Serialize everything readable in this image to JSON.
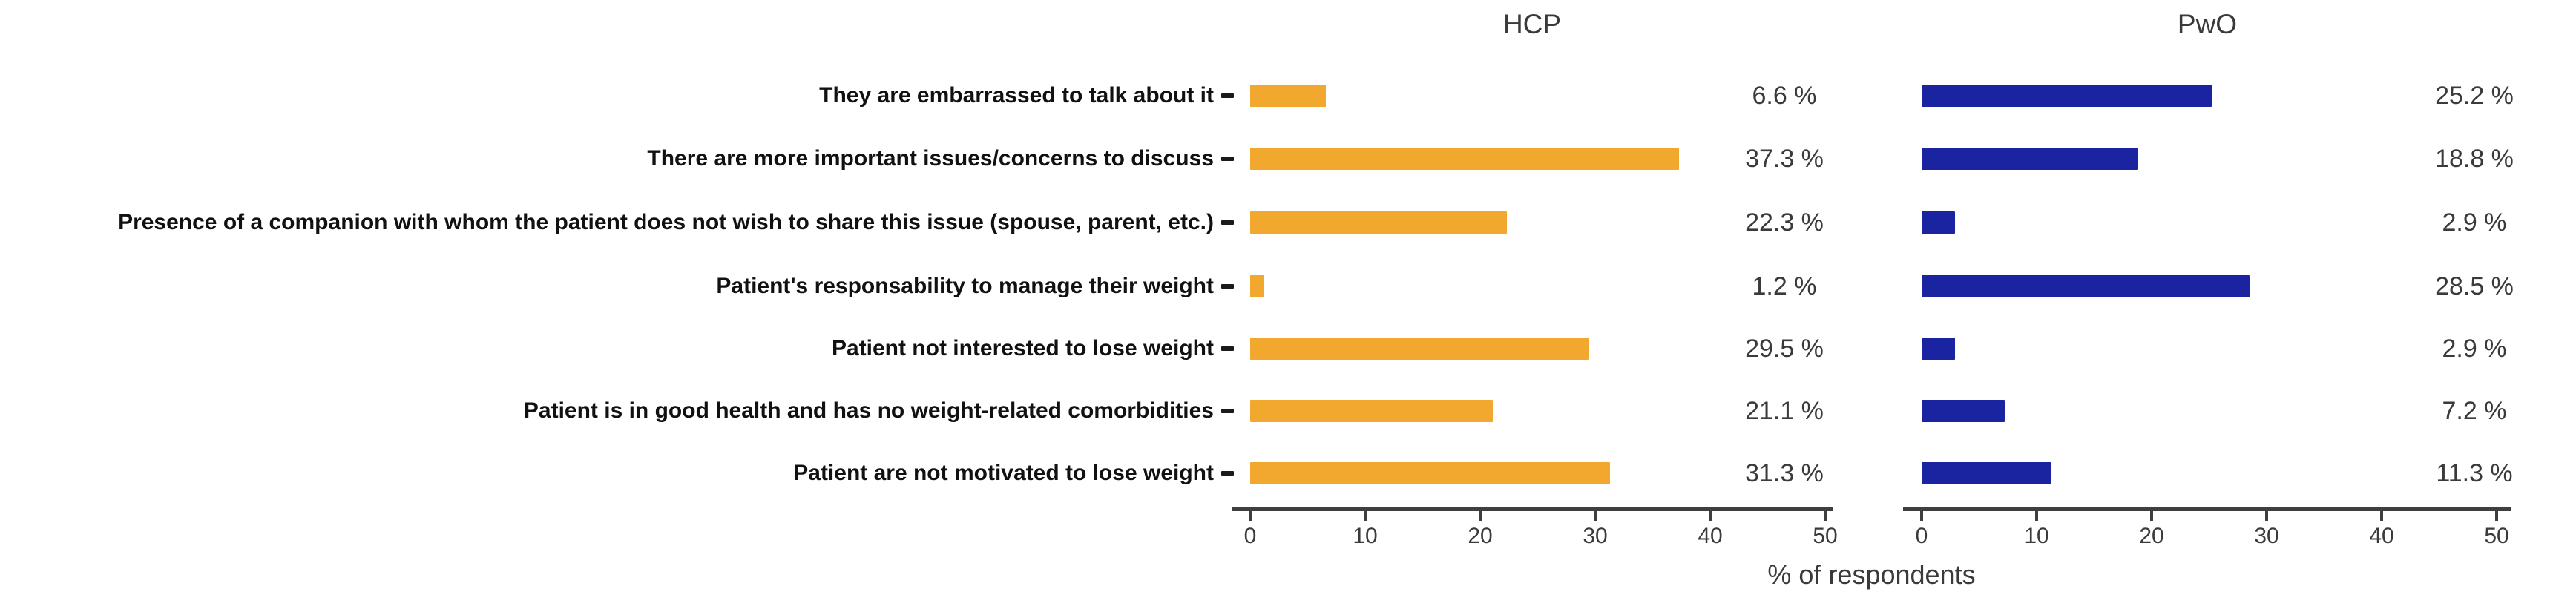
{
  "chart_data": {
    "type": "bar",
    "orientation": "horizontal",
    "title": "",
    "xlabel": "% of respondents",
    "ylabel": "",
    "grid": false,
    "legend_position": "none",
    "xlim": [
      0,
      52
    ],
    "x_ticks": [
      0,
      10,
      20,
      30,
      40,
      50
    ],
    "x_tick_labels": [
      "0",
      "10",
      "20",
      "30",
      "40",
      "50"
    ],
    "categories": [
      "They are embarrassed to talk about it",
      "There are more important issues/concerns to discuss",
      "Presence of a companion with whom the patient does not wish to share this issue (spouse, parent, etc.)",
      "Patient's responsability to manage their weight",
      "Patient not interested to lose weight",
      "Patient is in good health and has no weight-related comorbidities",
      "Patient are not motivated to lose weight"
    ],
    "series": [
      {
        "name": "HCP",
        "color": "#F2A72E",
        "values": [
          6.6,
          37.3,
          22.3,
          1.2,
          29.5,
          21.1,
          31.3
        ],
        "value_labels": [
          "6.6 %",
          "37.3 %",
          "22.3 %",
          "1.2 %",
          "29.5 %",
          "21.1 %",
          "31.3 %"
        ]
      },
      {
        "name": "PwO",
        "color": "#1A23A0",
        "values": [
          25.2,
          18.8,
          2.9,
          28.5,
          2.9,
          7.2,
          11.3
        ],
        "value_labels": [
          "25.2 %",
          "18.8 %",
          "2.9 %",
          "28.5 %",
          "2.9 %",
          "7.2 %",
          "11.3 %"
        ]
      }
    ],
    "colors": {
      "hcp_bar": "#F2A72E",
      "pwo_bar": "#1A23A0",
      "axis": "#3f3f3f",
      "text": "#3a3a3a",
      "category_text": "#111111",
      "background": "#ffffff"
    }
  }
}
